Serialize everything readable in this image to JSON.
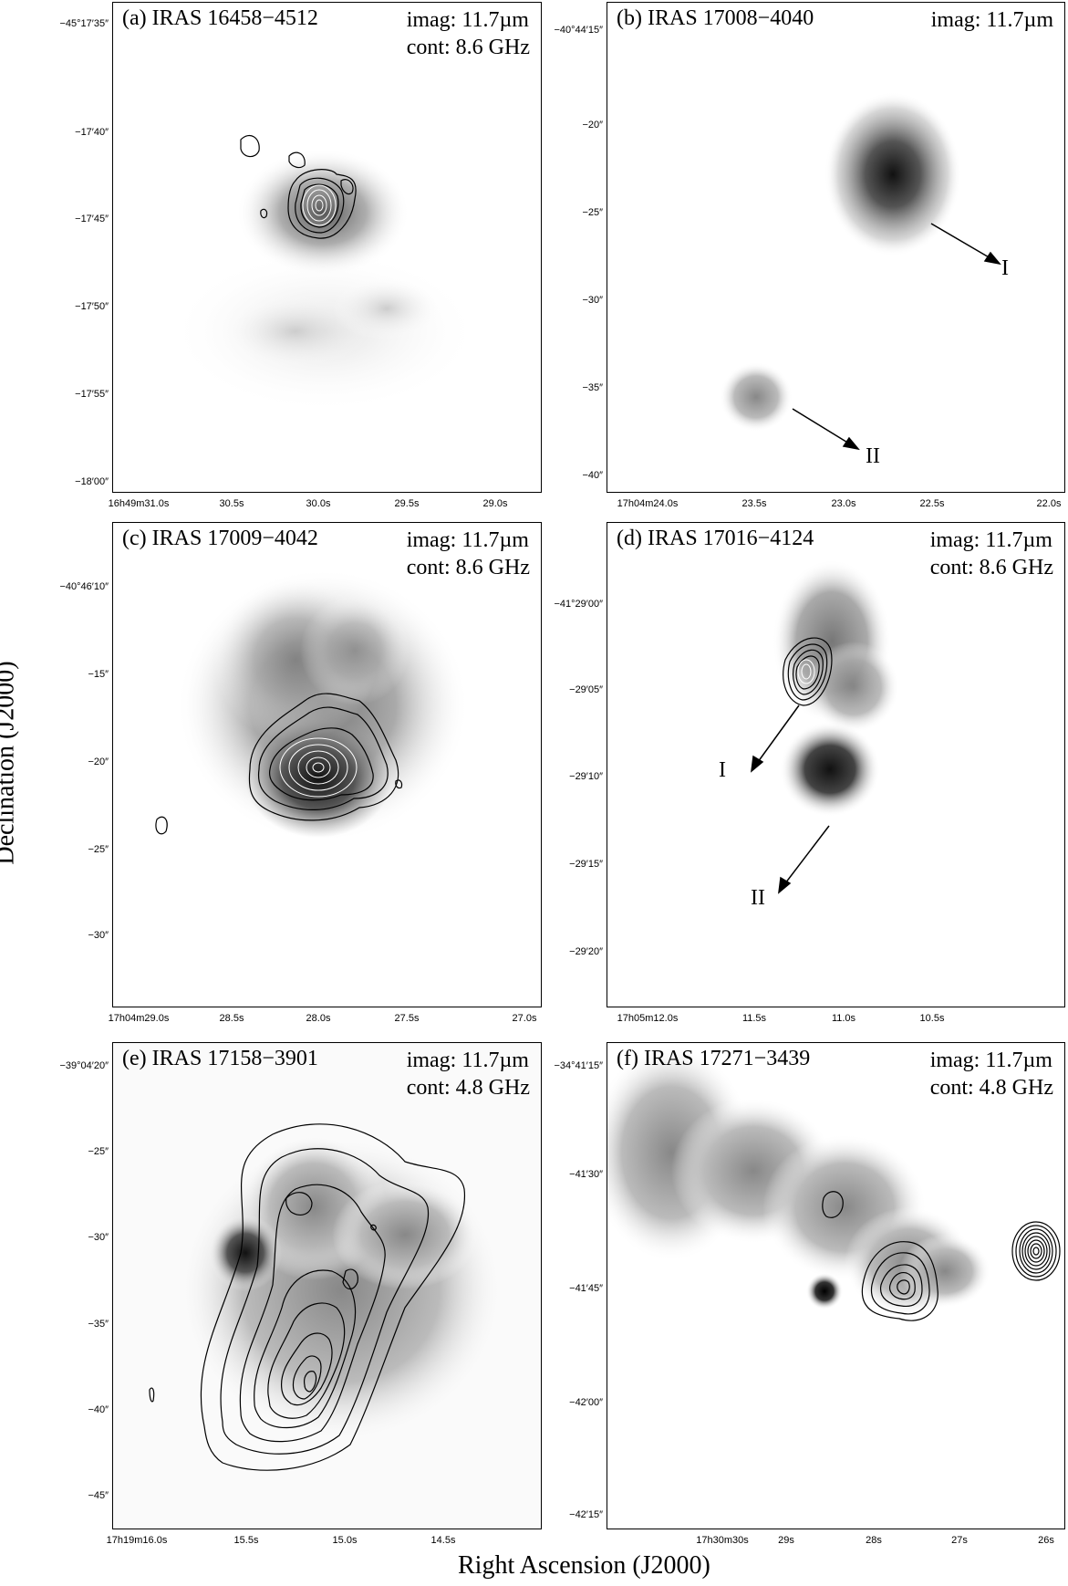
{
  "figure": {
    "xlabel": "Right Ascension (J2000)",
    "ylabel": "Declination (J2000)"
  },
  "panels": [
    {
      "id": "a",
      "label": "(a) IRAS 16458−4512",
      "imag": "imag: 11.7µm",
      "cont": "cont: 8.6 GHz",
      "yticks": [
        "−45°17′35″",
        "−17′40″",
        "−17′45″",
        "−17′50″",
        "−17′55″",
        "−18′00″"
      ],
      "xticks": [
        "16h49m31.0s",
        "30.5s",
        "30.0s",
        "29.5s",
        "29.0s"
      ],
      "sources": []
    },
    {
      "id": "b",
      "label": "(b) IRAS 17008−4040",
      "imag": "imag: 11.7µm",
      "cont": "",
      "yticks": [
        "−40°44′15″",
        "−20″",
        "−25″",
        "−30″",
        "−35″",
        "−40″"
      ],
      "xticks": [
        "17h04m24.0s",
        "23.5s",
        "23.0s",
        "22.5s",
        "22.0s"
      ],
      "sources": [
        "I",
        "II"
      ]
    },
    {
      "id": "c",
      "label": "(c) IRAS 17009−4042",
      "imag": "imag: 11.7µm",
      "cont": "cont: 8.6 GHz",
      "yticks": [
        "−40°46′10″",
        "−15″",
        "−20″",
        "−25″",
        "−30″"
      ],
      "xticks": [
        "17h04m29.0s",
        "28.5s",
        "28.0s",
        "27.5s",
        "27.0s"
      ],
      "sources": []
    },
    {
      "id": "d",
      "label": "(d) IRAS 17016−4124",
      "imag": "imag: 11.7µm",
      "cont": "cont: 8.6 GHz",
      "yticks": [
        "−41°29′00″",
        "−29′05″",
        "−29′10″",
        "−29′15″",
        "−29′20″"
      ],
      "xticks": [
        "17h05m12.0s",
        "11.5s",
        "11.0s",
        "10.5s"
      ],
      "sources": [
        "I",
        "II"
      ]
    },
    {
      "id": "e",
      "label": "(e) IRAS 17158−3901",
      "imag": "imag: 11.7µm",
      "cont": "cont: 4.8 GHz",
      "yticks": [
        "−39°04′20″",
        "−25″",
        "−30″",
        "−35″",
        "−40″",
        "−45″"
      ],
      "xticks": [
        "17h19m16.0s",
        "15.5s",
        "15.0s",
        "14.5s"
      ],
      "sources": []
    },
    {
      "id": "f",
      "label": "(f) IRAS 17271−3439",
      "imag": "imag: 11.7µm",
      "cont": "cont: 4.8 GHz",
      "yticks": [
        "−34°41′15″",
        "−41′30″",
        "−41′45″",
        "−42′00″",
        "−42′15″"
      ],
      "xticks": [
        "17h30m30s",
        "29s",
        "28s",
        "27s",
        "26s"
      ],
      "sources": []
    }
  ]
}
